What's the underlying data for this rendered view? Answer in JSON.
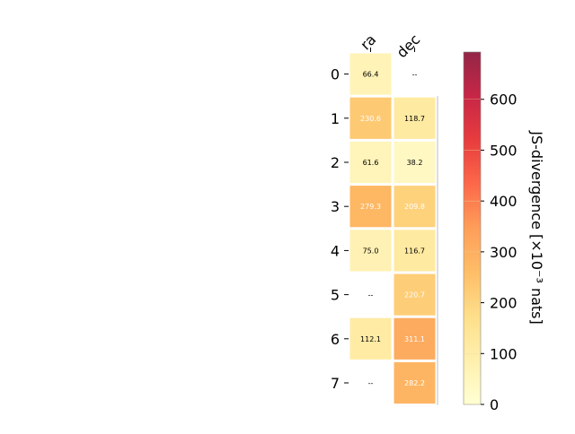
{
  "chart_data": {
    "type": "heatmap",
    "columns": [
      "ra",
      "dec"
    ],
    "rows": [
      "0",
      "1",
      "2",
      "3",
      "4",
      "5",
      "6",
      "7"
    ],
    "values": [
      [
        66.4,
        null
      ],
      [
        230.6,
        118.7
      ],
      [
        61.6,
        38.2
      ],
      [
        279.3,
        209.8
      ],
      [
        75.0,
        116.7
      ],
      [
        null,
        220.7
      ],
      [
        112.1,
        311.1
      ],
      [
        null,
        282.2
      ]
    ],
    "cell_labels": [
      [
        "66.4",
        "--"
      ],
      [
        "230.6",
        "118.7"
      ],
      [
        "61.6",
        "38.2"
      ],
      [
        "279.3",
        "209.8"
      ],
      [
        "75.0",
        "116.7"
      ],
      [
        "--",
        "220.7"
      ],
      [
        "112.1",
        "311.1"
      ],
      [
        "--",
        "282.2"
      ]
    ],
    "colorbar": {
      "label": "JS-divergence [×10⁻³ nats]",
      "min": 0,
      "max": 693,
      "ticks": [
        0,
        100,
        200,
        300,
        400,
        500,
        600
      ],
      "colormap": "YlOrRd"
    },
    "colors": {
      "dark_text": "#000000",
      "light_text": "#ffffff",
      "axis": "#000000"
    }
  }
}
